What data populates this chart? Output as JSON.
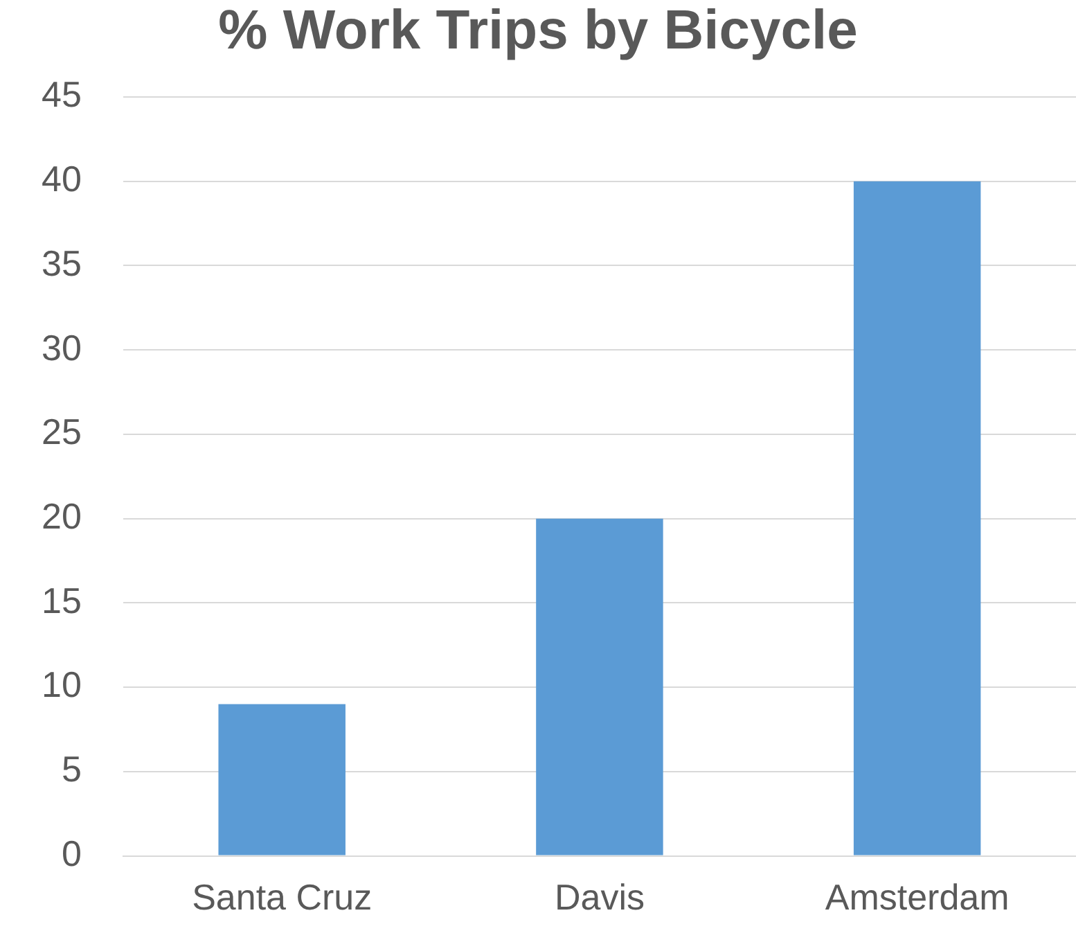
{
  "chart_data": {
    "type": "bar",
    "title": "% Work Trips by Bicycle",
    "categories": [
      "Santa Cruz",
      "Davis",
      "Amsterdam"
    ],
    "values": [
      9,
      20,
      40
    ],
    "color": "#5b9bd5",
    "ylim": [
      0,
      45
    ],
    "yticks": [
      0,
      5,
      10,
      15,
      20,
      25,
      30,
      35,
      40,
      45
    ],
    "grid": "y"
  }
}
